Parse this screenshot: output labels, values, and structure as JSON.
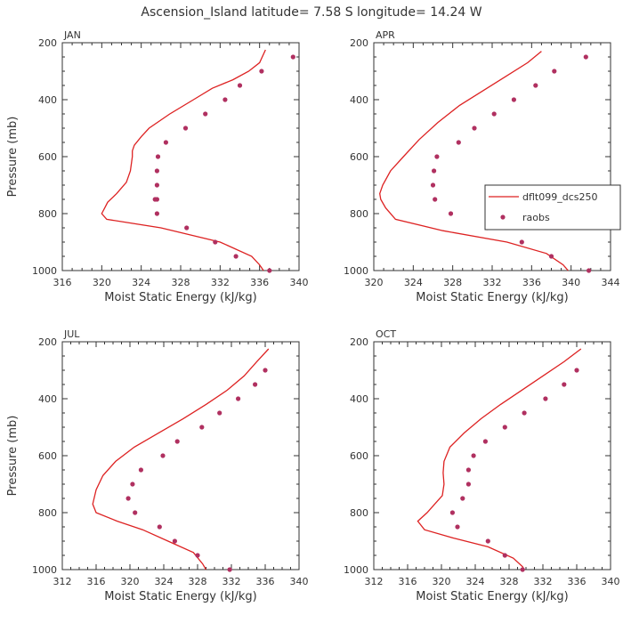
{
  "title": "Ascension_Island  latitude= 7.58 S longitude= 14.24 W",
  "colors": {
    "model": "#dd2222",
    "obs": "#b03060",
    "axis": "#333333"
  },
  "legend": {
    "model_label": "dflt099_dcs250",
    "obs_label": "raobs"
  },
  "chart_data": [
    {
      "type": "line",
      "panel": "JAN",
      "xlabel": "Moist Static Energy (kJ/kg)",
      "ylabel": "Pressure (mb)",
      "xlim": [
        316,
        340
      ],
      "ylim": [
        1000,
        200
      ],
      "xticks": [
        316,
        320,
        324,
        328,
        332,
        336,
        340
      ],
      "yticks": [
        200,
        400,
        600,
        800,
        1000
      ],
      "series": [
        {
          "kind": "line",
          "x": [
            336.6,
            336.0,
            334.9,
            333.3,
            331.2,
            329.3,
            326.9,
            324.8,
            324.0,
            323.3,
            323.1,
            323.1,
            322.9,
            322.5,
            321.5,
            320.6,
            320.3,
            320.0,
            320.5,
            326.0,
            332.0,
            335.2,
            336.0,
            336.4
          ],
          "y": [
            225,
            270,
            300,
            330,
            360,
            400,
            450,
            500,
            530,
            560,
            580,
            600,
            650,
            690,
            730,
            760,
            780,
            800,
            820,
            850,
            900,
            950,
            980,
            1000
          ]
        },
        {
          "kind": "scatter",
          "x": [
            339.4,
            336.2,
            334.0,
            332.5,
            330.5,
            328.5,
            326.5,
            325.7,
            325.6,
            325.6,
            325.4,
            325.6,
            325.6,
            328.6,
            331.5,
            333.6,
            337.0
          ],
          "y": [
            250,
            300,
            350,
            400,
            450,
            500,
            550,
            600,
            650,
            700,
            750,
            750,
            800,
            850,
            900,
            950,
            1000
          ]
        }
      ]
    },
    {
      "type": "line",
      "panel": "APR",
      "xlabel": "Moist Static Energy (kJ/kg)",
      "ylabel": "",
      "xlim": [
        320,
        344
      ],
      "ylim": [
        1000,
        200
      ],
      "xticks": [
        320,
        324,
        328,
        332,
        336,
        340,
        344
      ],
      "yticks": [
        200,
        400,
        600,
        800,
        1000
      ],
      "series": [
        {
          "kind": "line",
          "x": [
            337.0,
            335.6,
            333.3,
            331.0,
            328.7,
            326.5,
            324.6,
            323.0,
            321.7,
            320.9,
            320.6,
            320.7,
            321.2,
            322.2,
            327.0,
            333.5,
            337.5,
            339.2,
            339.7
          ],
          "y": [
            230,
            270,
            320,
            370,
            420,
            480,
            540,
            600,
            650,
            700,
            730,
            750,
            780,
            820,
            860,
            900,
            940,
            980,
            1000
          ]
        },
        {
          "kind": "scatter",
          "x": [
            341.5,
            338.3,
            336.4,
            334.2,
            332.2,
            330.2,
            328.6,
            326.4,
            326.1,
            326.0,
            326.2,
            327.8,
            331.5,
            335.0,
            338.0,
            341.8
          ],
          "y": [
            250,
            300,
            350,
            400,
            450,
            500,
            550,
            600,
            650,
            700,
            750,
            800,
            850,
            900,
            950,
            1000
          ]
        }
      ]
    },
    {
      "type": "line",
      "panel": "JUL",
      "xlabel": "Moist Static Energy (kJ/kg)",
      "ylabel": "Pressure (mb)",
      "xlim": [
        312,
        340
      ],
      "ylim": [
        1000,
        200
      ],
      "xticks": [
        312,
        316,
        320,
        324,
        328,
        332,
        336,
        340
      ],
      "yticks": [
        200,
        400,
        600,
        800,
        1000
      ],
      "series": [
        {
          "kind": "line",
          "x": [
            336.4,
            335.0,
            333.5,
            331.5,
            329.0,
            326.3,
            323.4,
            320.5,
            318.3,
            316.8,
            316.0,
            315.6,
            316.0,
            318.5,
            321.5,
            324.5,
            327.5,
            328.6,
            329.0
          ],
          "y": [
            225,
            270,
            320,
            370,
            420,
            470,
            520,
            570,
            620,
            670,
            720,
            770,
            800,
            830,
            860,
            900,
            940,
            980,
            1000
          ]
        },
        {
          "kind": "scatter",
          "x": [
            336.0,
            334.8,
            332.8,
            330.6,
            328.5,
            325.6,
            323.9,
            321.3,
            320.3,
            319.8,
            320.6,
            323.5,
            325.3,
            328.0,
            331.8
          ],
          "y": [
            300,
            350,
            400,
            450,
            500,
            550,
            600,
            650,
            700,
            750,
            800,
            850,
            900,
            950,
            1000
          ]
        }
      ]
    },
    {
      "type": "line",
      "panel": "OCT",
      "xlabel": "Moist Static Energy (kJ/kg)",
      "ylabel": "",
      "xlim": [
        312,
        340
      ],
      "ylim": [
        1000,
        200
      ],
      "xticks": [
        312,
        316,
        320,
        324,
        328,
        332,
        336,
        340
      ],
      "yticks": [
        200,
        400,
        600,
        800,
        1000
      ],
      "series": [
        {
          "kind": "line",
          "x": [
            336.5,
            334.5,
            332.0,
            329.5,
            327.0,
            324.7,
            322.7,
            321.0,
            320.3,
            320.2,
            320.3,
            320.1,
            319.2,
            318.3,
            317.2,
            318.0,
            321.5,
            325.5,
            328.5,
            329.6,
            329.8
          ],
          "y": [
            225,
            270,
            320,
            370,
            420,
            470,
            520,
            570,
            620,
            660,
            700,
            740,
            770,
            800,
            830,
            860,
            890,
            920,
            960,
            990,
            1000
          ]
        },
        {
          "kind": "scatter",
          "x": [
            336.0,
            334.5,
            332.3,
            329.8,
            327.5,
            325.2,
            323.8,
            323.2,
            323.2,
            322.5,
            321.3,
            321.9,
            325.5,
            327.5,
            329.6
          ],
          "y": [
            300,
            350,
            400,
            450,
            500,
            550,
            600,
            650,
            700,
            750,
            800,
            850,
            900,
            950,
            1000
          ]
        }
      ]
    }
  ]
}
